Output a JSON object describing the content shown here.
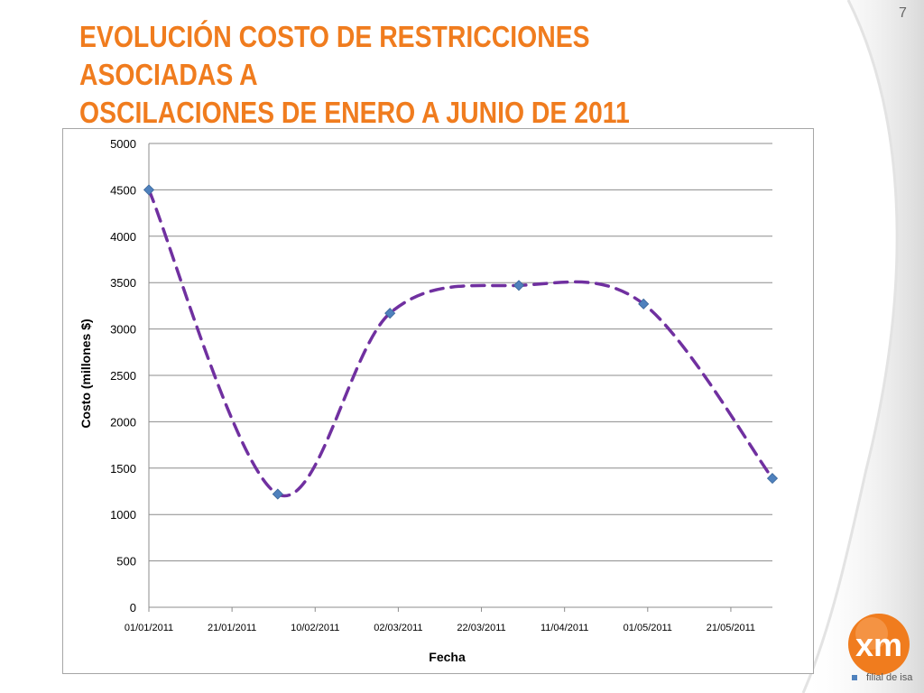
{
  "slide": {
    "title_line1": "EVOLUCIÓN COSTO DE RESTRICCIONES ASOCIADAS A",
    "title_line2": "OSCILACIONES DE ENERO A JUNIO DE 2011",
    "number": "7",
    "logo_text": "filial de isa",
    "logo_mark": "xm"
  },
  "colors": {
    "title": "#f07c1e",
    "series_line": "#7030a0",
    "marker": "#4f81bd",
    "gridline": "#8c8c8c",
    "logo_orange": "#f07c1e"
  },
  "chart_data": {
    "type": "scatter",
    "xlabel": "Fecha",
    "ylabel": "Costo (millones $)",
    "ylim": [
      0,
      5000
    ],
    "yticks": [
      0,
      500,
      1000,
      1500,
      2000,
      2500,
      3000,
      3500,
      4000,
      4500,
      5000
    ],
    "xlim": [
      "01/01/2011",
      "31/05/2011"
    ],
    "xticks": [
      "01/01/2011",
      "21/01/2011",
      "10/02/2011",
      "02/03/2011",
      "22/03/2011",
      "11/04/2011",
      "01/05/2011",
      "21/05/2011"
    ],
    "grid": true,
    "line_style": "dashed smoothed",
    "series": [
      {
        "points": [
          {
            "x": "01/01/2011",
            "y": 4500
          },
          {
            "x": "01/02/2011",
            "y": 1220
          },
          {
            "x": "28/02/2011",
            "y": 3170
          },
          {
            "x": "31/03/2011",
            "y": 3470
          },
          {
            "x": "30/04/2011",
            "y": 3270
          },
          {
            "x": "31/05/2011",
            "y": 1390
          }
        ]
      }
    ]
  }
}
